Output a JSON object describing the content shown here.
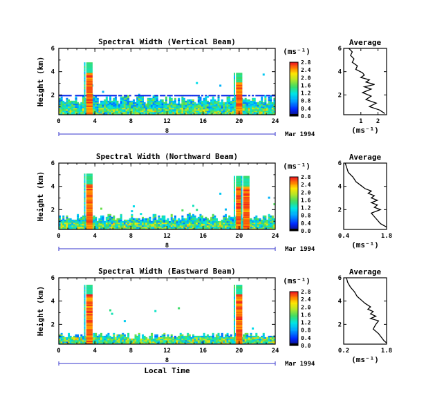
{
  "figure": {
    "date_label": "Mar 1994",
    "day_label": "8",
    "xlabel_bottom": "Local Time",
    "ylabel": "Height (km)",
    "unit_label": "(ms⁻¹)"
  },
  "panels": [
    {
      "title": "Spectral Width (Vertical Beam)",
      "colorbar_ticks": [
        "0.0",
        "0.4",
        "0.8",
        "1.2",
        "1.6",
        "2.0",
        "2.4",
        "2.8"
      ],
      "avg_title": "Average",
      "avg_xlabel": "(ms⁻¹)",
      "avg_xticks": [
        "1",
        "2"
      ]
    },
    {
      "title": "Spectral Width (Northward Beam)",
      "colorbar_ticks": [
        "0.0",
        "0.4",
        "0.8",
        "1.2",
        "1.6",
        "2.0",
        "2.4",
        "2.8"
      ],
      "avg_title": "Average",
      "avg_xlabel": "(ms⁻¹)",
      "avg_xticks": [
        "0.4",
        "1.8"
      ]
    },
    {
      "title": "Spectral Width (Eastward Beam)",
      "colorbar_ticks": [
        "0.0",
        "0.4",
        "0.8",
        "1.2",
        "1.6",
        "2.0",
        "2.4",
        "2.8"
      ],
      "avg_title": "Average",
      "avg_xlabel": "(ms⁻¹)",
      "avg_xticks": [
        "0.2",
        "1.8"
      ]
    }
  ],
  "chart_data": [
    {
      "type": "heatmap",
      "title": "Spectral Width (Vertical Beam)",
      "xlabel": "",
      "ylabel": "Height (km)",
      "xlim": [
        0,
        24
      ],
      "ylim": [
        0.3,
        6
      ],
      "xticks": [
        0,
        4,
        8,
        12,
        16,
        20,
        24
      ],
      "yticks": [
        2,
        4,
        6
      ],
      "colorbar": {
        "label": "(ms⁻¹)",
        "range": [
          0,
          2.8
        ],
        "ticks": [
          0,
          0.4,
          0.8,
          1.2,
          1.6,
          2.0,
          2.4,
          2.8
        ]
      },
      "background_layer_top_km": 1.6,
      "band_km": [
        1.6,
        2.0
      ],
      "spikes": [
        {
          "time_h": 3.4,
          "top_km": 4.7,
          "value": 2.6
        },
        {
          "time_h": 20.0,
          "top_km": 3.9,
          "value": 2.7
        }
      ]
    },
    {
      "type": "line",
      "title": "Average",
      "xlabel": "(ms⁻¹)",
      "ylabel": "",
      "xlim": [
        0,
        2.5
      ],
      "ylim": [
        0.3,
        6
      ],
      "xticks": [
        1,
        2
      ],
      "yticks": [
        2,
        4,
        6
      ],
      "x": [
        0.3,
        0.5,
        0.4,
        0.6,
        0.5,
        0.8,
        0.7,
        1.1,
        1.2,
        1.0,
        1.5,
        1.3,
        1.8,
        1.2,
        1.6,
        1.1,
        1.6,
        1.3,
        1.9,
        1.5,
        2.1,
        2.4
      ],
      "y": [
        6.0,
        5.7,
        5.4,
        5.1,
        4.8,
        4.5,
        4.2,
        3.9,
        3.7,
        3.5,
        3.3,
        3.1,
        2.9,
        2.7,
        2.5,
        2.2,
        1.9,
        1.6,
        1.3,
        1.0,
        0.7,
        0.4
      ]
    },
    {
      "type": "heatmap",
      "title": "Spectral Width (Northward Beam)",
      "xlabel": "",
      "ylabel": "Height (km)",
      "xlim": [
        0,
        24
      ],
      "ylim": [
        0.3,
        6
      ],
      "xticks": [
        0,
        4,
        8,
        12,
        16,
        20,
        24
      ],
      "yticks": [
        2,
        4,
        6
      ],
      "colorbar": {
        "label": "(ms⁻¹)",
        "range": [
          0,
          2.8
        ],
        "ticks": [
          0,
          0.4,
          0.8,
          1.2,
          1.6,
          2.0,
          2.4,
          2.8
        ]
      },
      "background_layer_top_km": 1.3,
      "spikes": [
        {
          "time_h": 3.4,
          "top_km": 5.0,
          "value": 2.6
        },
        {
          "time_h": 20.0,
          "top_km": 4.8,
          "value": 2.6
        },
        {
          "time_h": 20.8,
          "top_km": 4.8,
          "value": 2.3
        }
      ]
    },
    {
      "type": "line",
      "title": "Average",
      "xlabel": "(ms⁻¹)",
      "ylabel": "",
      "xlim": [
        0.4,
        1.8
      ],
      "ylim": [
        0.3,
        6
      ],
      "xticks": [
        0.4,
        1.8
      ],
      "yticks": [
        2,
        4,
        6
      ],
      "x": [
        0.45,
        0.5,
        0.55,
        0.7,
        0.8,
        1.0,
        1.1,
        1.3,
        1.2,
        1.4,
        1.3,
        1.5,
        1.3,
        1.5,
        1.4,
        1.6,
        1.3,
        1.4,
        1.5,
        1.6,
        1.8
      ],
      "y": [
        6.0,
        5.6,
        5.2,
        4.8,
        4.4,
        4.0,
        3.8,
        3.6,
        3.4,
        3.2,
        3.0,
        2.8,
        2.6,
        2.4,
        2.2,
        2.0,
        1.7,
        1.4,
        1.1,
        0.8,
        0.5
      ]
    },
    {
      "type": "heatmap",
      "title": "Spectral Width (Eastward Beam)",
      "xlabel": "Local Time",
      "ylabel": "Height (km)",
      "xlim": [
        0,
        24
      ],
      "ylim": [
        0.3,
        6
      ],
      "xticks": [
        0,
        4,
        8,
        12,
        16,
        20,
        24
      ],
      "yticks": [
        2,
        4,
        6
      ],
      "colorbar": {
        "label": "(ms⁻¹)",
        "range": [
          0,
          2.8
        ],
        "ticks": [
          0,
          0.4,
          0.8,
          1.2,
          1.6,
          2.0,
          2.4,
          2.8
        ]
      },
      "background_layer_top_km": 1.0,
      "spikes": [
        {
          "time_h": 3.4,
          "top_km": 5.3,
          "value": 2.6
        },
        {
          "time_h": 20.0,
          "top_km": 5.3,
          "value": 2.6
        }
      ]
    },
    {
      "type": "line",
      "title": "Average",
      "xlabel": "(ms⁻¹)",
      "ylabel": "",
      "xlim": [
        0.2,
        1.8
      ],
      "ylim": [
        0.3,
        6
      ],
      "xticks": [
        0.2,
        1.8
      ],
      "yticks": [
        2,
        4,
        6
      ],
      "x": [
        0.3,
        0.35,
        0.45,
        0.6,
        0.7,
        0.9,
        1.0,
        1.2,
        1.1,
        1.3,
        1.2,
        1.4,
        1.2,
        1.5,
        1.4,
        1.3,
        1.5,
        1.6,
        1.7,
        1.8
      ],
      "y": [
        6.0,
        5.6,
        5.2,
        4.8,
        4.4,
        4.0,
        3.8,
        3.5,
        3.3,
        3.1,
        2.9,
        2.7,
        2.5,
        2.3,
        2.0,
        1.6,
        1.2,
        0.9,
        0.6,
        0.4
      ]
    }
  ]
}
